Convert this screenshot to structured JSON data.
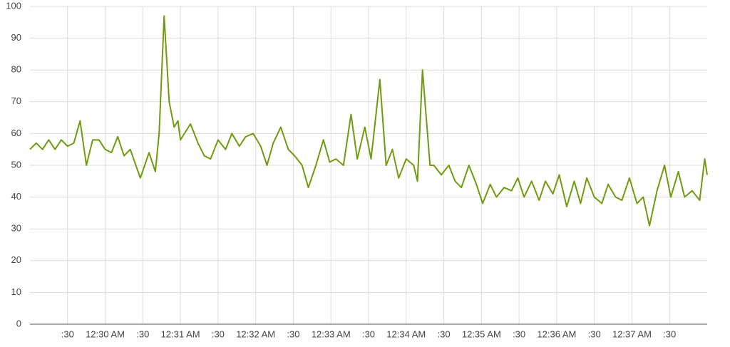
{
  "chart_data": {
    "type": "line",
    "x": [
      "00:29:00",
      "00:29:05",
      "00:29:10",
      "00:29:15",
      "00:29:20",
      "00:29:25",
      "00:29:30",
      "00:29:35",
      "00:29:40",
      "00:29:45",
      "00:29:50",
      "00:29:55",
      "00:30:00",
      "00:30:05",
      "00:30:10",
      "00:30:15",
      "00:30:20",
      "00:30:28",
      "00:30:35",
      "00:30:40",
      "00:30:43",
      "00:30:47",
      "00:30:51",
      "00:30:55",
      "00:30:58",
      "00:31:00",
      "00:31:08",
      "00:31:14",
      "00:31:19",
      "00:31:24",
      "00:31:30",
      "00:31:36",
      "00:31:41",
      "00:31:47",
      "00:31:52",
      "00:31:58",
      "00:32:04",
      "00:32:09",
      "00:32:14",
      "00:32:20",
      "00:32:26",
      "00:32:31",
      "00:32:37",
      "00:32:42",
      "00:32:48",
      "00:32:54",
      "00:32:59",
      "00:33:04",
      "00:33:10",
      "00:33:16",
      "00:33:21",
      "00:33:27",
      "00:33:32",
      "00:33:39",
      "00:33:44",
      "00:33:49",
      "00:33:54",
      "00:34:00",
      "00:34:06",
      "00:34:09",
      "00:34:13",
      "00:34:19",
      "00:34:22",
      "00:34:28",
      "00:34:34",
      "00:34:39",
      "00:34:44",
      "00:34:50",
      "00:34:56",
      "00:35:01",
      "00:35:07",
      "00:35:12",
      "00:35:18",
      "00:35:24",
      "00:35:29",
      "00:35:34",
      "00:35:40",
      "00:35:46",
      "00:35:51",
      "00:35:57",
      "00:36:02",
      "00:36:08",
      "00:36:14",
      "00:36:19",
      "00:36:24",
      "00:36:30",
      "00:36:36",
      "00:36:41",
      "00:36:47",
      "00:36:52",
      "00:36:58",
      "00:37:04",
      "00:37:09",
      "00:37:14",
      "00:37:20",
      "00:37:26",
      "00:37:31",
      "00:37:37",
      "00:37:42",
      "00:37:48",
      "00:37:54",
      "00:37:58",
      "00:38:00"
    ],
    "series": [
      {
        "color": "#6f9a12",
        "values": [
          55,
          57,
          55,
          58,
          55,
          58,
          56,
          57,
          64,
          50,
          58,
          58,
          55,
          54,
          59,
          53,
          55,
          46,
          54,
          48,
          60,
          97,
          70,
          62,
          64,
          58,
          63,
          57,
          53,
          52,
          58,
          55,
          60,
          56,
          59,
          60,
          56,
          50,
          57,
          62,
          55,
          53,
          50,
          43,
          50,
          58,
          51,
          52,
          50,
          66,
          52,
          62,
          52,
          77,
          50,
          55,
          46,
          52,
          50,
          45,
          80,
          50,
          50,
          47,
          50,
          45,
          43,
          50,
          44,
          38,
          44,
          40,
          43,
          42,
          46,
          40,
          45,
          39,
          45,
          41,
          47,
          37,
          45,
          38,
          46,
          40,
          38,
          44,
          40,
          39,
          46,
          38,
          40,
          31,
          42,
          50,
          40,
          48,
          40,
          42,
          39,
          52,
          47
        ]
      }
    ],
    "xlim": [
      "00:29:00",
      "00:38:00"
    ],
    "xticks": [
      {
        "value": "00:29:30",
        "label": ":30"
      },
      {
        "value": "00:30:00",
        "label": "12:30 AM"
      },
      {
        "value": "00:30:30",
        "label": ":30"
      },
      {
        "value": "00:31:00",
        "label": "12:31 AM"
      },
      {
        "value": "00:31:30",
        "label": ":30"
      },
      {
        "value": "00:32:00",
        "label": "12:32 AM"
      },
      {
        "value": "00:32:30",
        "label": ":30"
      },
      {
        "value": "00:33:00",
        "label": "12:33 AM"
      },
      {
        "value": "00:33:30",
        "label": ":30"
      },
      {
        "value": "00:34:00",
        "label": "12:34 AM"
      },
      {
        "value": "00:34:30",
        "label": ":30"
      },
      {
        "value": "00:35:00",
        "label": "12:35 AM"
      },
      {
        "value": "00:35:30",
        "label": ":30"
      },
      {
        "value": "00:36:00",
        "label": "12:36 AM"
      },
      {
        "value": "00:36:30",
        "label": ":30"
      },
      {
        "value": "00:37:00",
        "label": "12:37 AM"
      },
      {
        "value": "00:37:30",
        "label": ":30"
      }
    ],
    "ylim": [
      0,
      100
    ],
    "yticks": [
      0,
      10,
      20,
      30,
      40,
      50,
      60,
      70,
      80,
      90,
      100
    ],
    "grid": true
  }
}
